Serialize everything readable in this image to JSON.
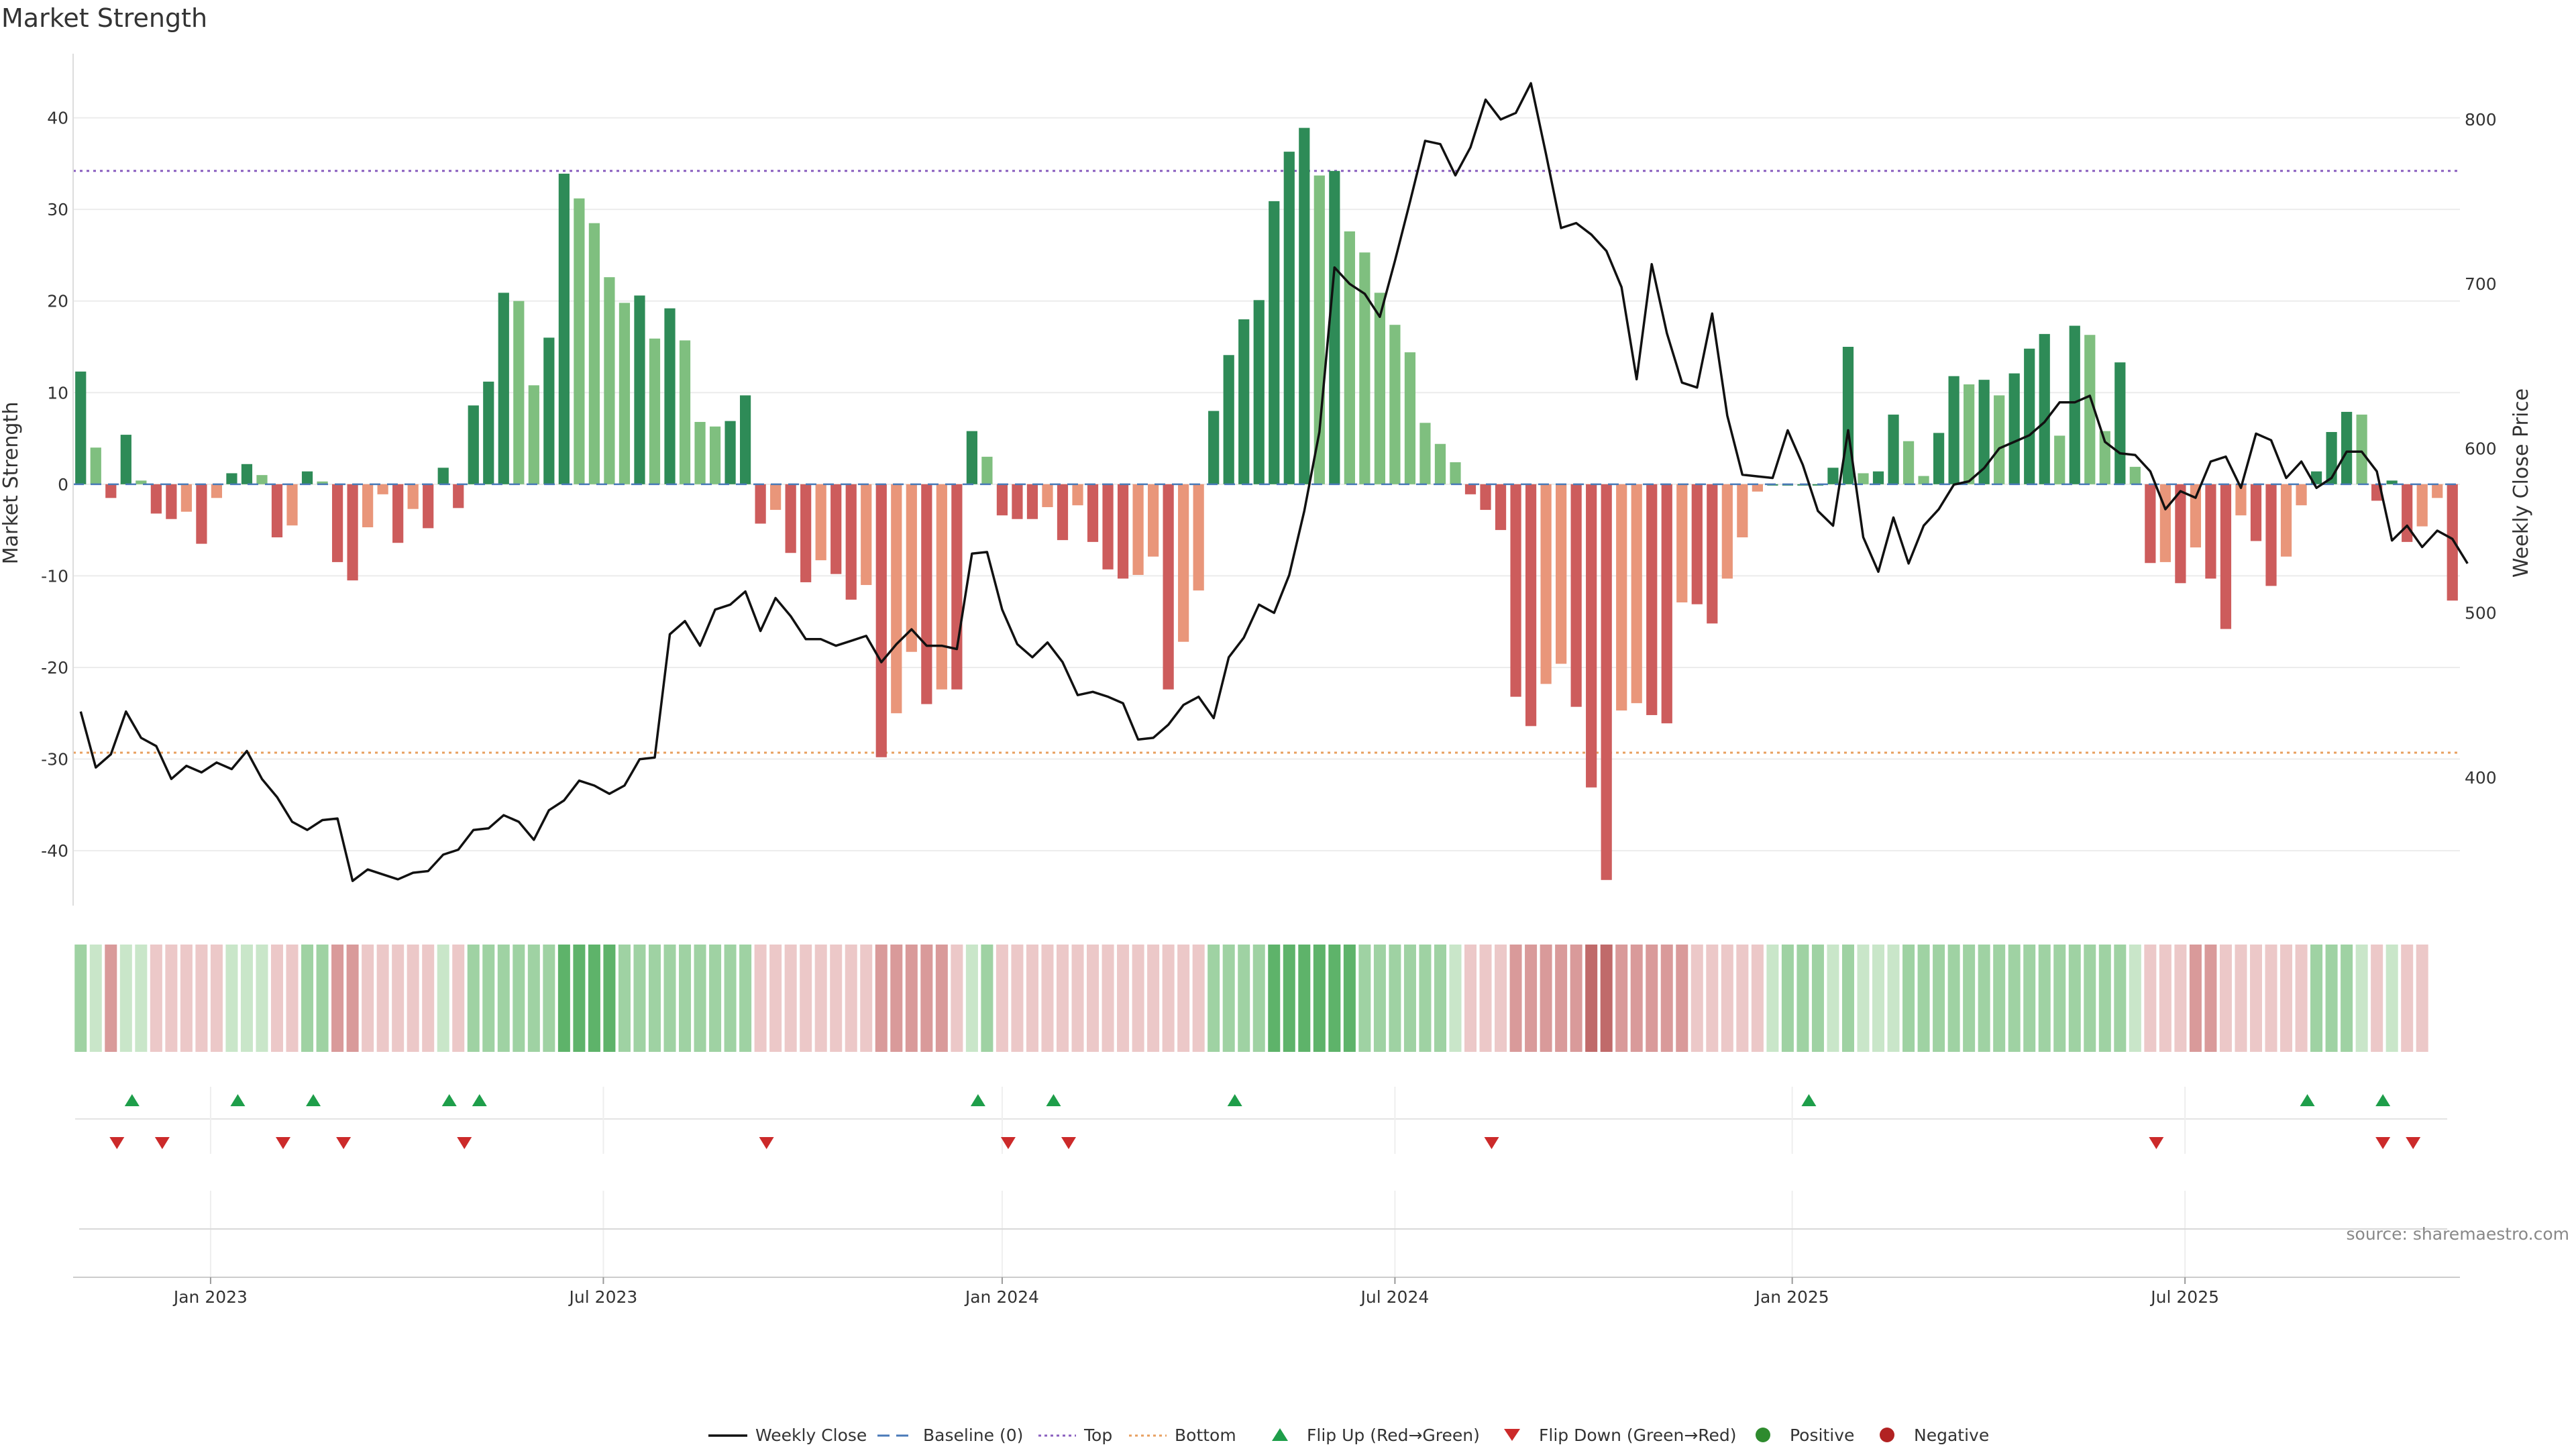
{
  "title": "Market Strength",
  "source": "source: sharemaestro.com",
  "colors": {
    "strong_green": "#2e8b57",
    "light_green": "#7fbf7f",
    "strong_red": "#cd5c5c",
    "light_red": "#e9967a",
    "price_line": "#111111",
    "baseline": "#4a7ab8",
    "top_line": "#8a5fbf",
    "bottom_line": "#e8a060",
    "flip_up": "#1e9e4a",
    "flip_down": "#cc2a2a",
    "positive_dot": "#2e8b2e",
    "negative_dot": "#b22222"
  },
  "chart_data": {
    "type": "bar",
    "x_start": "2022-10-31",
    "x_interval_days": 7,
    "ylabel_left": "Market Strength",
    "ylabel_right": "Weekly Close Price",
    "ylim_left": [
      -46,
      47
    ],
    "ylim_right": [
      322,
      840
    ],
    "left_ticks": [
      40,
      30,
      20,
      10,
      0,
      -10,
      -20,
      -30,
      -40
    ],
    "right_ticks": [
      800,
      700,
      600,
      500,
      400
    ],
    "x_ticks": [
      {
        "label": "Jan 2023",
        "week": 8.6
      },
      {
        "label": "Jul 2023",
        "week": 34.6
      },
      {
        "label": "Jan 2024",
        "week": 61
      },
      {
        "label": "Jul 2024",
        "week": 87
      },
      {
        "label": "Jan 2025",
        "week": 113.3
      },
      {
        "label": "Jul 2025",
        "week": 139.3
      }
    ],
    "top_level": 34.2,
    "bottom_level": -29.3,
    "strength": [
      12.3,
      4,
      -1.5,
      5.4,
      0.4,
      -3.2,
      -3.8,
      -3,
      -6.5,
      -1.5,
      1.2,
      2.2,
      1,
      -5.8,
      -4.5,
      1.4,
      0.3,
      -8.5,
      -10.5,
      -4.7,
      -1.1,
      -6.4,
      -2.7,
      -4.8,
      1.8,
      -2.6,
      8.6,
      11.2,
      20.9,
      20,
      10.8,
      16,
      33.9,
      31.2,
      28.5,
      22.6,
      19.8,
      20.6,
      15.9,
      19.2,
      15.7,
      6.8,
      6.3,
      6.9,
      9.7,
      -4.3,
      -2.8,
      -7.5,
      -10.7,
      -8.3,
      -9.8,
      -12.6,
      -11,
      -29.8,
      -25,
      -18.3,
      -24,
      -22.4,
      -22.4,
      5.8,
      3,
      -3.4,
      -3.8,
      -3.8,
      -2.5,
      -6.1,
      -2.3,
      -6.3,
      -9.3,
      -10.3,
      -9.9,
      -7.9,
      -22.4,
      -17.2,
      -11.6,
      8,
      14.1,
      18,
      20.1,
      30.9,
      36.3,
      38.9,
      33.7,
      34.2,
      27.6,
      25.3,
      20.9,
      17.4,
      14.4,
      6.7,
      4.4,
      2.4,
      -1.1,
      -2.8,
      -5,
      -23.2,
      -26.4,
      -21.8,
      -19.6,
      -24.3,
      -33.1,
      -43.2,
      -24.7,
      -23.9,
      -25.2,
      -26.1,
      -12.9,
      -13.1,
      -15.2,
      -10.3,
      -5.8,
      -0.8,
      0,
      0,
      0,
      0,
      1.8,
      15,
      1.2,
      1.4,
      7.6,
      4.7,
      0.9,
      5.6,
      11.8,
      10.9,
      11.4,
      9.7,
      12.1,
      14.8,
      16.4,
      5.3,
      17.3,
      16.3,
      5.8,
      13.3,
      1.9,
      -8.6,
      -8.5,
      -10.8,
      -6.9,
      -10.3,
      -15.8,
      -3.4,
      -6.2,
      -11.1,
      -7.9,
      -2.3,
      1.4,
      5.7,
      7.9,
      7.6,
      -1.8,
      0.4,
      -6.3,
      -4.6,
      -1.5,
      -12.7
    ],
    "price": [
      440,
      406,
      414,
      440,
      424,
      419,
      399,
      407,
      403,
      409,
      405,
      416,
      399,
      388,
      373,
      368,
      374,
      375,
      337,
      344,
      341,
      338,
      342,
      343,
      353,
      356,
      368,
      369,
      377,
      373,
      362,
      380,
      386,
      398,
      395,
      390,
      395,
      411,
      412,
      487,
      495,
      480,
      502,
      505,
      513,
      489,
      509,
      498,
      484,
      484,
      480,
      483,
      486,
      470,
      481,
      490,
      480,
      480,
      478,
      536,
      537,
      502,
      481,
      473,
      482,
      470,
      450,
      452,
      449,
      445,
      423,
      424,
      432,
      444,
      449,
      436,
      473,
      485,
      505,
      500,
      523,
      562,
      610,
      710,
      700,
      694,
      680,
      714,
      750,
      787,
      785,
      766,
      783,
      812,
      800,
      804,
      822,
      779,
      734,
      737,
      730,
      720,
      698,
      642,
      712,
      670,
      640,
      637,
      682,
      620,
      584,
      583,
      582,
      611,
      590,
      562,
      553,
      611,
      546,
      525,
      558,
      530,
      553,
      563,
      578,
      580,
      588,
      600,
      604,
      608,
      616,
      628,
      628,
      632,
      604,
      597,
      596,
      586,
      563,
      574,
      570,
      592,
      595,
      576,
      609,
      605,
      582,
      592,
      576,
      582,
      598,
      598,
      586,
      544,
      553,
      540,
      550,
      545,
      530
    ],
    "heat_levels": [
      2,
      1,
      2,
      1,
      1,
      1,
      1,
      1,
      1,
      1,
      1,
      1,
      1,
      1,
      1,
      2,
      2,
      2,
      2,
      1,
      1,
      1,
      1,
      1,
      1,
      1,
      2,
      2,
      2,
      2,
      2,
      2,
      3,
      3,
      3,
      3,
      2,
      2,
      2,
      2,
      2,
      2,
      2,
      2,
      2,
      1,
      1,
      1,
      1,
      1,
      1,
      1,
      1,
      2,
      2,
      2,
      2,
      2,
      1,
      1,
      2,
      1,
      1,
      1,
      1,
      1,
      1,
      1,
      1,
      1,
      1,
      1,
      1,
      1,
      1,
      2,
      2,
      2,
      2,
      3,
      3,
      3,
      3,
      3,
      3,
      2,
      2,
      2,
      2,
      2,
      2,
      1,
      1,
      1,
      1,
      2,
      2,
      2,
      2,
      2,
      3,
      3,
      2,
      2,
      2,
      2,
      2,
      1,
      1,
      1,
      1,
      1,
      1,
      2,
      2,
      2,
      1,
      2,
      1,
      1,
      1,
      2,
      2,
      2,
      2,
      2,
      2,
      2,
      2,
      2,
      2,
      2,
      2,
      2,
      2,
      2,
      1,
      1,
      1,
      1,
      2,
      2,
      1,
      1,
      1,
      1,
      1,
      1,
      2,
      2,
      2,
      1,
      1,
      1,
      1,
      1
    ],
    "flip_up_weeks": [
      3.4,
      10.4,
      15.4,
      24.4,
      26.4,
      59.4,
      64.4,
      76.4,
      114.4,
      147.4,
      152.4
    ],
    "flip_down_weeks": [
      2.4,
      5.4,
      13.4,
      17.4,
      25.4,
      45.4,
      61.4,
      65.4,
      93.4,
      137.4,
      152.4,
      154.4
    ],
    "series": [
      {
        "name": "Weekly Close",
        "type": "line"
      },
      {
        "name": "Baseline (0)",
        "type": "line"
      },
      {
        "name": "Top",
        "type": "line"
      },
      {
        "name": "Bottom",
        "type": "line"
      },
      {
        "name": "Flip Up (Red→Green)",
        "type": "marker"
      },
      {
        "name": "Flip Down (Green→Red)",
        "type": "marker"
      },
      {
        "name": "Positive",
        "type": "marker"
      },
      {
        "name": "Negative",
        "type": "marker"
      }
    ],
    "legend_placement": "bottom-center",
    "grid": true
  }
}
